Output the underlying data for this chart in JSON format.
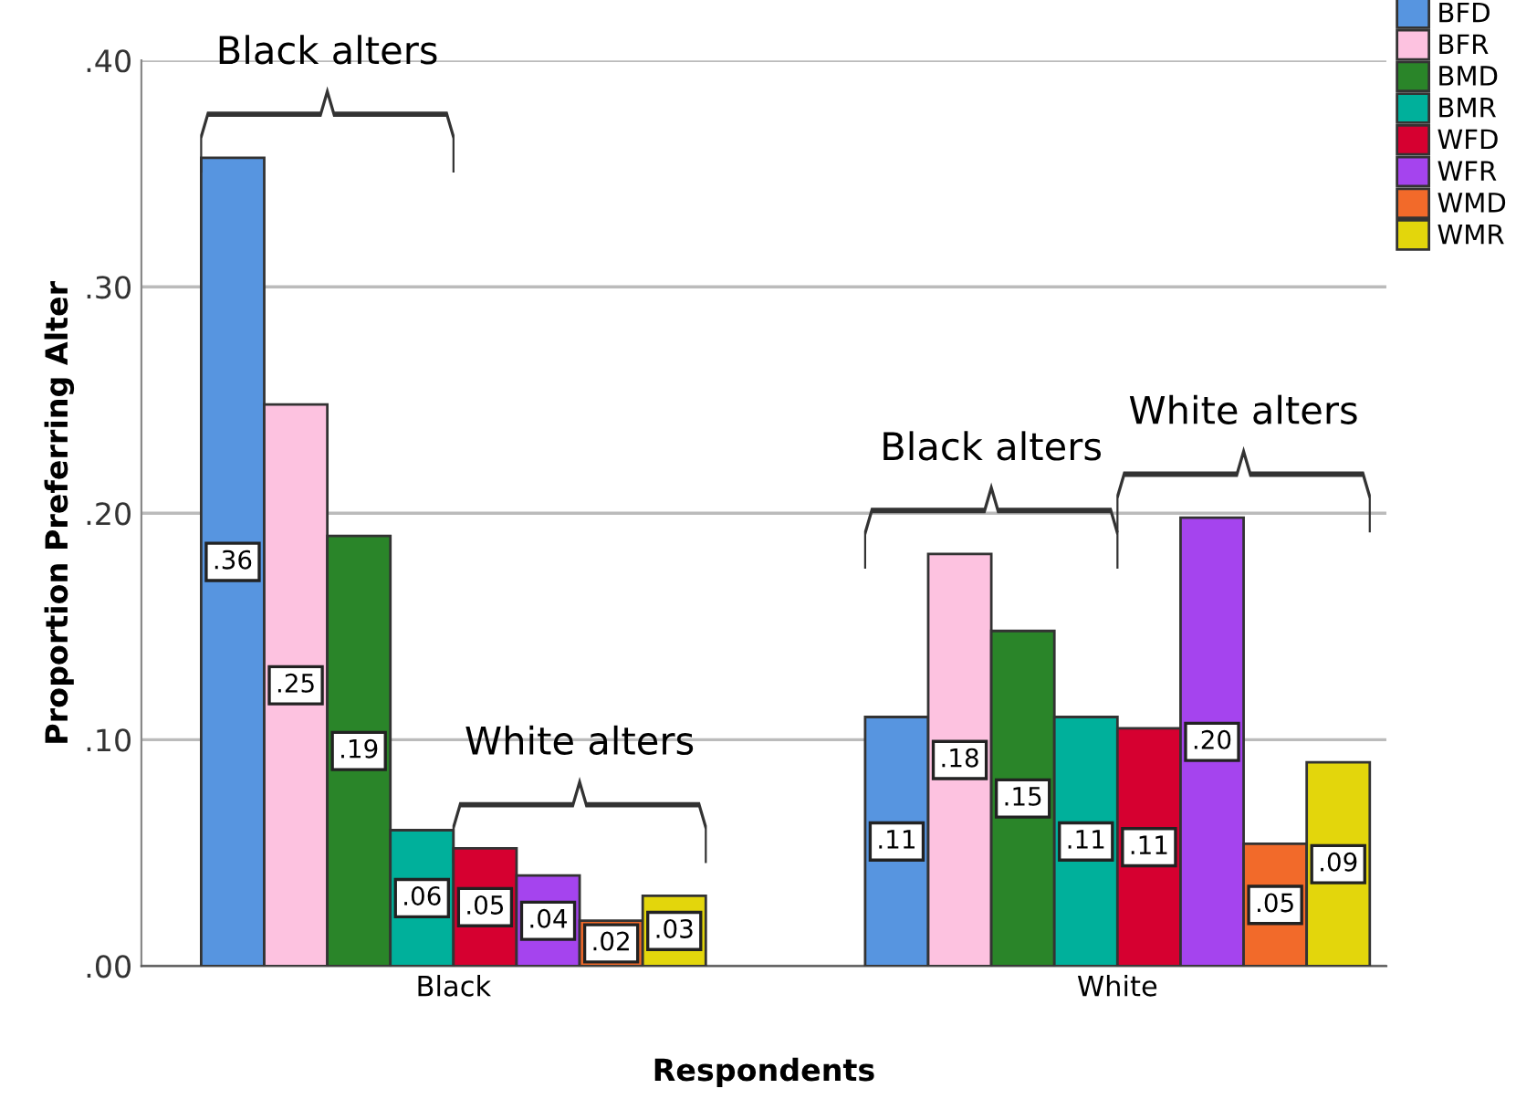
{
  "chart_data": {
    "type": "bar",
    "xlabel": "Respondents",
    "ylabel": "Proportion Preferring Alter",
    "categories": [
      "Black",
      "White"
    ],
    "series": [
      {
        "name": "BFD",
        "color": "#5795e0",
        "values": [
          0.357,
          0.11
        ],
        "value_labels": [
          ".36",
          ".11"
        ]
      },
      {
        "name": "BFR",
        "color": "#fdc2e0",
        "values": [
          0.248,
          0.182
        ],
        "value_labels": [
          ".25",
          ".18"
        ]
      },
      {
        "name": "BMD",
        "color": "#2a8529",
        "values": [
          0.19,
          0.148
        ],
        "value_labels": [
          ".19",
          ".15"
        ]
      },
      {
        "name": "BMR",
        "color": "#00b09b",
        "values": [
          0.06,
          0.11
        ],
        "value_labels": [
          ".06",
          ".11"
        ]
      },
      {
        "name": "WFD",
        "color": "#d60030",
        "values": [
          0.052,
          0.105
        ],
        "value_labels": [
          ".05",
          ".11"
        ]
      },
      {
        "name": "WFR",
        "color": "#a544ee",
        "values": [
          0.04,
          0.198
        ],
        "value_labels": [
          ".04",
          ".20"
        ]
      },
      {
        "name": "WMD",
        "color": "#f26a2a",
        "values": [
          0.02,
          0.054
        ],
        "value_labels": [
          ".02",
          ".05"
        ]
      },
      {
        "name": "WMR",
        "color": "#e3d60c",
        "values": [
          0.031,
          0.09
        ],
        "value_labels": [
          ".03",
          ".09"
        ]
      }
    ],
    "ylim": [
      0,
      0.4
    ],
    "yticks": [
      {
        "value": 0,
        "label": ".00"
      },
      {
        "value": 0.1,
        "label": ".10"
      },
      {
        "value": 0.2,
        "label": ".20"
      },
      {
        "value": 0.3,
        "label": ".30"
      },
      {
        "value": 0.4,
        "label": ".40"
      }
    ],
    "grid": "y",
    "legend": "top right",
    "annotations": [
      "Black alters",
      "White alters",
      "Black alters",
      "White alters"
    ]
  }
}
